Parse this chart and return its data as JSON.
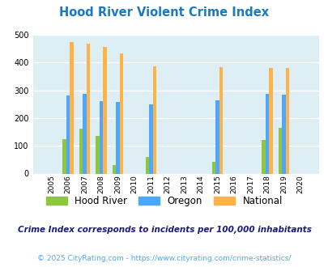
{
  "title": "Hood River Violent Crime Index",
  "subtitle": "Crime Index corresponds to incidents per 100,000 inhabitants",
  "footer": "© 2025 CityRating.com - https://www.cityrating.com/crime-statistics/",
  "years": [
    2005,
    2006,
    2007,
    2008,
    2009,
    2010,
    2011,
    2012,
    2013,
    2014,
    2015,
    2016,
    2017,
    2018,
    2019,
    2020
  ],
  "hood_river": [
    0,
    125,
    163,
    135,
    32,
    0,
    60,
    0,
    0,
    0,
    42,
    0,
    0,
    120,
    165,
    0
  ],
  "oregon": [
    0,
    281,
    288,
    260,
    257,
    0,
    250,
    0,
    0,
    0,
    263,
    0,
    0,
    288,
    284,
    0
  ],
  "national": [
    0,
    474,
    467,
    455,
    432,
    0,
    387,
    0,
    0,
    0,
    384,
    0,
    0,
    381,
    381,
    0
  ],
  "ylim": [
    0,
    500
  ],
  "yticks": [
    0,
    100,
    200,
    300,
    400,
    500
  ],
  "color_hood_river": "#8dc63f",
  "color_oregon": "#4da6ff",
  "color_national": "#ffb347",
  "bg_color": "#ddeef5",
  "title_color": "#1a7abf",
  "subtitle_color": "#1a1a80",
  "footer_color": "#4da6ff",
  "bar_width": 0.22,
  "grid_color": "#ffffff"
}
